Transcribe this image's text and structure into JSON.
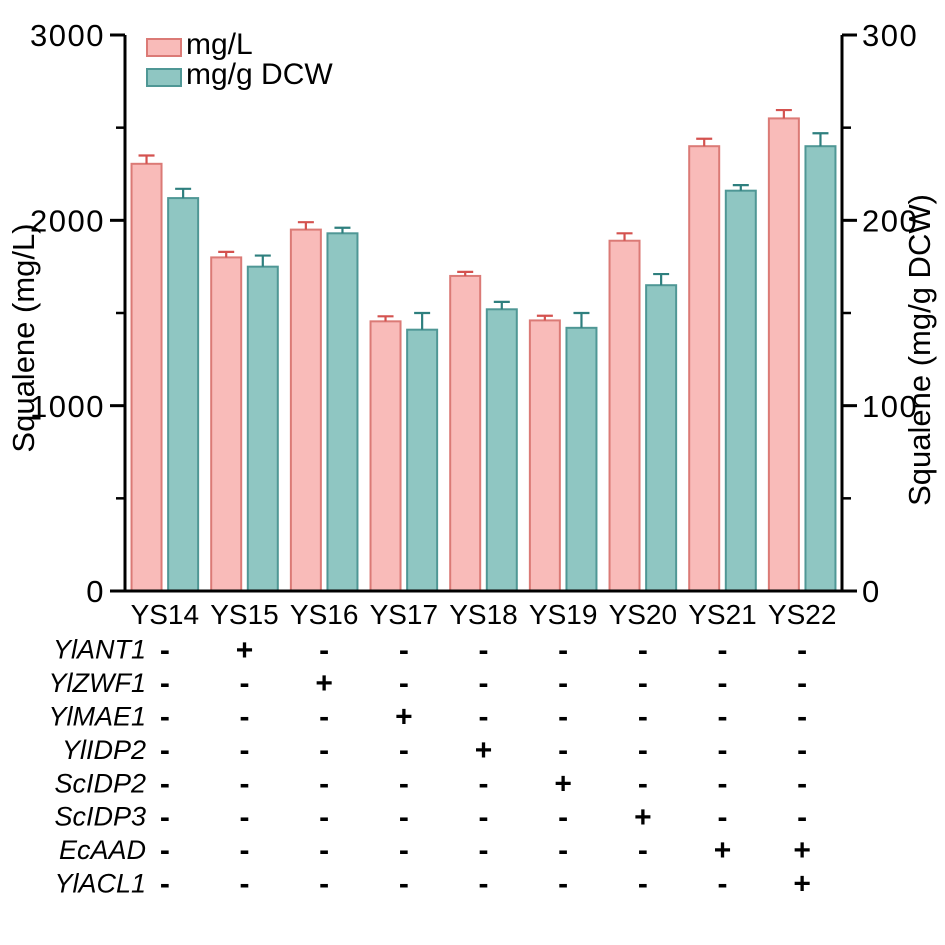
{
  "chart_data": {
    "type": "bar",
    "title": "",
    "categories": [
      "YS14",
      "YS15",
      "YS16",
      "YS17",
      "YS18",
      "YS19",
      "YS20",
      "YS21",
      "YS22"
    ],
    "left_axis": {
      "title": "Squalene (mg/L)",
      "min": 0,
      "max": 3000,
      "major_ticks": [
        0,
        1000,
        2000,
        3000
      ],
      "minor_ticks": [
        500,
        1500,
        2500
      ]
    },
    "right_axis": {
      "title": "Squalene (mg/g DCW)",
      "min": 0,
      "max": 300,
      "major_ticks": [
        0,
        100,
        200,
        300
      ],
      "minor_ticks": [
        50,
        150,
        250
      ]
    },
    "grid": false,
    "legend_position": "top-left-inside",
    "series": [
      {
        "name": "mg/L",
        "axis": "left",
        "fill": "#F9BBB9",
        "stroke": "#DB7A76",
        "error_color": "#D4524F",
        "values": [
          2305,
          1800,
          1950,
          1455,
          1700,
          1460,
          1890,
          2400,
          2550
        ],
        "errors": [
          45,
          30,
          40,
          27,
          22,
          25,
          40,
          40,
          45
        ]
      },
      {
        "name": "mg/g DCW",
        "axis": "right",
        "fill": "#8FC6C2",
        "stroke": "#4F9795",
        "error_color": "#2E7F7E",
        "values": [
          212,
          175,
          193,
          141,
          152,
          142,
          165,
          216,
          240
        ],
        "errors": [
          5,
          6,
          3,
          9,
          4,
          8,
          6,
          3,
          7
        ]
      }
    ]
  },
  "gene_table": {
    "columns": [
      "YS14",
      "YS15",
      "YS16",
      "YS17",
      "YS18",
      "YS19",
      "YS20",
      "YS21",
      "YS22"
    ],
    "rows": [
      {
        "gene": "YlANT1",
        "marks": [
          "-",
          "+",
          "-",
          "-",
          "-",
          "-",
          "-",
          "-",
          "-"
        ]
      },
      {
        "gene": "YlZWF1",
        "marks": [
          "-",
          "-",
          "+",
          "-",
          "-",
          "-",
          "-",
          "-",
          "-"
        ]
      },
      {
        "gene": "YlMAE1",
        "marks": [
          "-",
          "-",
          "-",
          "+",
          "-",
          "-",
          "-",
          "-",
          "-"
        ]
      },
      {
        "gene": "YlIDP2",
        "marks": [
          "-",
          "-",
          "-",
          "-",
          "+",
          "-",
          "-",
          "-",
          "-"
        ]
      },
      {
        "gene": "ScIDP2",
        "marks": [
          "-",
          "-",
          "-",
          "-",
          "-",
          "+",
          "-",
          "-",
          "-"
        ]
      },
      {
        "gene": "ScIDP3",
        "marks": [
          "-",
          "-",
          "-",
          "-",
          "-",
          "-",
          "+",
          "-",
          "-"
        ]
      },
      {
        "gene": "EcAAD",
        "marks": [
          "-",
          "-",
          "-",
          "-",
          "-",
          "-",
          "-",
          "+",
          "+"
        ]
      },
      {
        "gene": "YlACL1",
        "marks": [
          "-",
          "-",
          "-",
          "-",
          "-",
          "-",
          "-",
          "-",
          "+"
        ]
      }
    ]
  },
  "colors": {
    "axis": "#000000",
    "background": "#FFFFFF",
    "text": "#000000"
  }
}
